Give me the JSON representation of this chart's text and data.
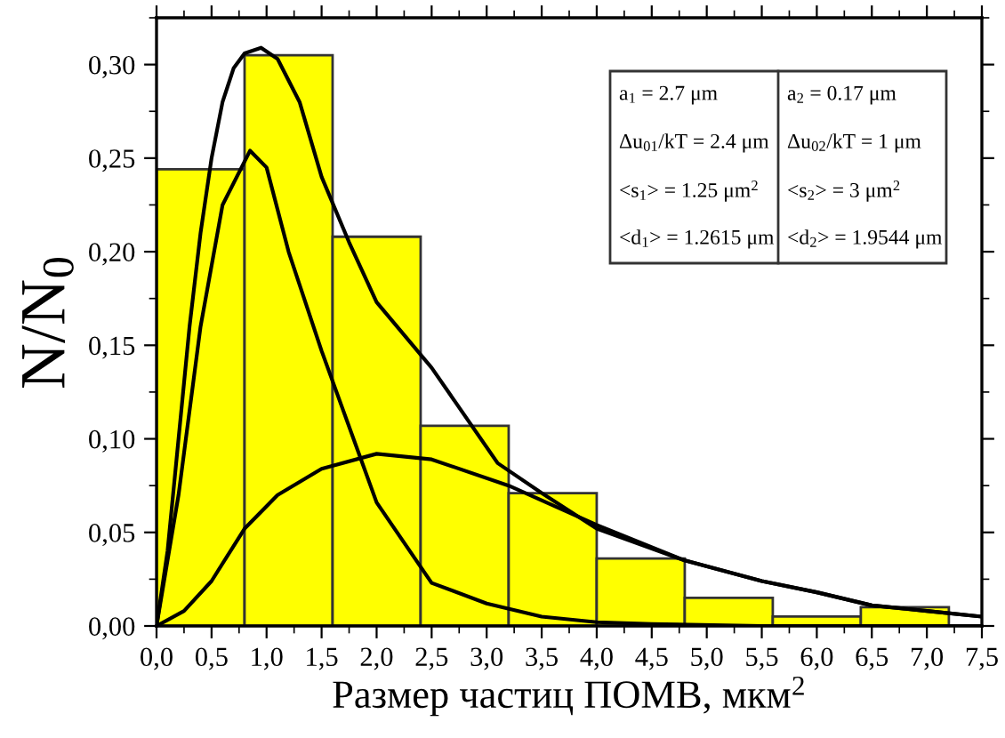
{
  "chart_data": {
    "type": "histogram",
    "xlabel": "Размер частиц ПОМВ, мкм$^{2}$",
    "ylabel": "N/N$_{0}$",
    "bins": [
      0,
      0.8,
      1.6,
      2.4,
      3.2,
      4.0,
      4.8,
      5.6,
      6.4,
      7.2
    ],
    "values": [
      0.244,
      0.305,
      0.208,
      0.107,
      0.071,
      0.036,
      0.015,
      0.005,
      0.01
    ],
    "color": "#ffff00",
    "series": [
      {
        "type": "line",
        "color": "#000000",
        "x": [
          0,
          0.1,
          0.2,
          0.3,
          0.4,
          0.5,
          0.6,
          0.7,
          0.8,
          0.95,
          1.1,
          1.3,
          1.5,
          1.75,
          2.0,
          2.5,
          3.1,
          3.5,
          4.0,
          4.8,
          5.5,
          6.0,
          6.5,
          7.0,
          7.5
        ],
        "values": [
          0,
          0.04,
          0.1,
          0.16,
          0.21,
          0.25,
          0.28,
          0.298,
          0.306,
          0.309,
          0.303,
          0.28,
          0.24,
          0.205,
          0.173,
          0.138,
          0.087,
          0.071,
          0.052,
          0.035,
          0.024,
          0.018,
          0.011,
          0.008,
          0.005
        ]
      },
      {
        "type": "line",
        "color": "#000000",
        "x": [
          0,
          0.2,
          0.4,
          0.6,
          0.85,
          1.0,
          1.2,
          1.5,
          2.0,
          2.5,
          3.0,
          3.5,
          4.0,
          4.5,
          5.5,
          7.5
        ],
        "values": [
          0,
          0.07,
          0.16,
          0.225,
          0.254,
          0.245,
          0.2,
          0.147,
          0.066,
          0.023,
          0.012,
          0.005,
          0.002,
          0.001,
          0,
          0
        ]
      },
      {
        "type": "line",
        "color": "#000000",
        "x": [
          0,
          0.25,
          0.5,
          0.8,
          1.1,
          1.5,
          2.0,
          2.5,
          3.2,
          4.0,
          4.8,
          5.5,
          6.0,
          6.5,
          7.0,
          7.5
        ],
        "values": [
          0,
          0.008,
          0.024,
          0.052,
          0.07,
          0.084,
          0.092,
          0.089,
          0.075,
          0.054,
          0.035,
          0.024,
          0.018,
          0.011,
          0.008,
          0.005
        ]
      }
    ],
    "xlim": [
      0,
      7.5
    ],
    "xticks": [
      {
        "value": 0,
        "label": "0,0"
      },
      {
        "value": 0.5,
        "label": "0,5"
      },
      {
        "value": 1,
        "label": "1,0"
      },
      {
        "value": 1.5,
        "label": "1,5"
      },
      {
        "value": 2,
        "label": "2,0"
      },
      {
        "value": 2.5,
        "label": "2,5"
      },
      {
        "value": 3,
        "label": "3,0"
      },
      {
        "value": 3.5,
        "label": "3,5"
      },
      {
        "value": 4,
        "label": "4,0"
      },
      {
        "value": 4.5,
        "label": "4,5"
      },
      {
        "value": 5,
        "label": "5,0"
      },
      {
        "value": 5.5,
        "label": "5,5"
      },
      {
        "value": 6,
        "label": "6,0"
      },
      {
        "value": 6.5,
        "label": "6,5"
      },
      {
        "value": 7,
        "label": "7,0"
      },
      {
        "value": 7.5,
        "label": "7,5"
      }
    ],
    "ylim": [
      0,
      0.325
    ],
    "yticks": [
      {
        "value": 0,
        "label": "0,00"
      },
      {
        "value": 0.05,
        "label": "0,05"
      },
      {
        "value": 0.1,
        "label": "0,10"
      },
      {
        "value": 0.15,
        "label": "0,15"
      },
      {
        "value": 0.2,
        "label": "0,20"
      },
      {
        "value": 0.25,
        "label": "0,25"
      },
      {
        "value": 0.3,
        "label": "0,30"
      }
    ],
    "grid": false,
    "annotations": [
      "a$_{1}$ = 2.7 μm",
      "Δu$_{01}$/kT = 2.4 μm",
      "<s$_{1}$> = 1.25 μm$^{2}$",
      "<d$_{1}$> = 1.2615 μm",
      "a$_{2}$ = 0.17 μm",
      "Δu$_{02}$/kT = 1 μm",
      "<s$_{2}$> = 3 μm$^{2}$",
      "<d$_{2}$> = 1.9544 μm"
    ]
  }
}
